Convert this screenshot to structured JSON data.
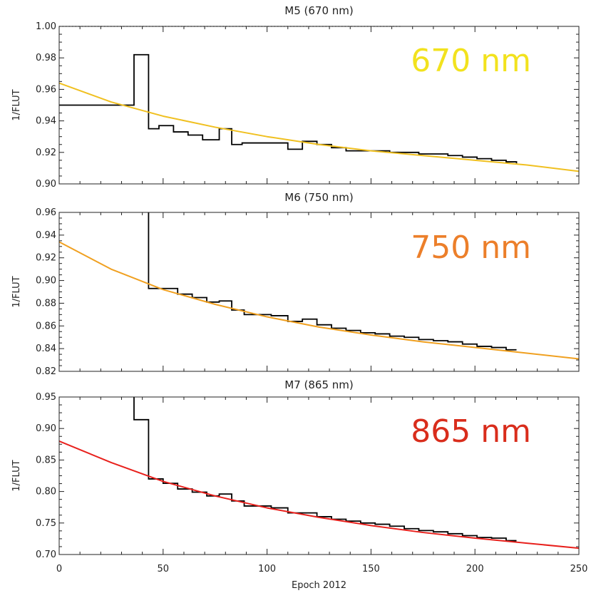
{
  "figure": {
    "x_axis_label": "Epoch 2012",
    "x_tick_labels": [
      "0",
      "50",
      "100",
      "150",
      "200",
      "250"
    ]
  },
  "chart_data": [
    {
      "type": "line",
      "title": "M5 (670 nm)",
      "ylabel": "1/FLUT",
      "xlabel": "",
      "xlim": [
        0,
        250
      ],
      "ylim": [
        0.9,
        1.0
      ],
      "y_ticks": [
        "0.90",
        "0.92",
        "0.94",
        "0.96",
        "0.98",
        "1.00"
      ],
      "annotation": "670 nm",
      "annotation_color": "#f2e21e",
      "fit_color": "#f0c020",
      "reference_line": {
        "y": 1.0,
        "x_range": [
          0,
          165
        ],
        "style": "dotted"
      },
      "series": [
        {
          "style": "step",
          "color": "#000000",
          "x": [
            0,
            36,
            43,
            48,
            55,
            62,
            69,
            77,
            83,
            88,
            95,
            102,
            110,
            117,
            124,
            131,
            138,
            145,
            152,
            159,
            166,
            173,
            180,
            187,
            194,
            201,
            208,
            215,
            220
          ],
          "y": [
            0.95,
            0.982,
            0.935,
            0.937,
            0.933,
            0.931,
            0.928,
            0.935,
            0.925,
            0.926,
            0.926,
            0.926,
            0.922,
            0.927,
            0.925,
            0.923,
            0.921,
            0.921,
            0.921,
            0.92,
            0.92,
            0.919,
            0.919,
            0.918,
            0.917,
            0.916,
            0.915,
            0.914,
            0.913
          ]
        },
        {
          "style": "line",
          "color": "#f0c020",
          "x": [
            0,
            25,
            50,
            75,
            100,
            125,
            150,
            175,
            200,
            225,
            250
          ],
          "y": [
            0.964,
            0.952,
            0.943,
            0.936,
            0.93,
            0.925,
            0.921,
            0.918,
            0.915,
            0.912,
            0.908
          ]
        }
      ]
    },
    {
      "type": "line",
      "title": "M6 (750 nm)",
      "ylabel": "1/FLUT",
      "xlabel": "",
      "xlim": [
        0,
        250
      ],
      "ylim": [
        0.82,
        0.96
      ],
      "y_ticks": [
        "0.82",
        "0.84",
        "0.86",
        "0.88",
        "0.90",
        "0.92",
        "0.94",
        "0.96"
      ],
      "annotation": "750 nm",
      "annotation_color": "#ec7f2a",
      "fit_color": "#f0a020",
      "series": [
        {
          "style": "step",
          "color": "#000000",
          "x": [
            36,
            43,
            50,
            57,
            64,
            71,
            77,
            83,
            89,
            95,
            102,
            110,
            117,
            124,
            131,
            138,
            145,
            152,
            159,
            166,
            173,
            180,
            187,
            194,
            201,
            208,
            215,
            220
          ],
          "y": [
            0.962,
            0.893,
            0.893,
            0.888,
            0.885,
            0.881,
            0.882,
            0.874,
            0.87,
            0.87,
            0.869,
            0.864,
            0.866,
            0.861,
            0.858,
            0.856,
            0.854,
            0.853,
            0.851,
            0.85,
            0.848,
            0.847,
            0.846,
            0.844,
            0.842,
            0.841,
            0.839,
            0.839
          ]
        },
        {
          "style": "line",
          "color": "#f0a020",
          "x": [
            0,
            25,
            50,
            75,
            100,
            125,
            150,
            175,
            200,
            225,
            250
          ],
          "y": [
            0.934,
            0.91,
            0.892,
            0.879,
            0.868,
            0.859,
            0.852,
            0.846,
            0.841,
            0.836,
            0.831
          ]
        }
      ]
    },
    {
      "type": "line",
      "title": "M7 (865 nm)",
      "ylabel": "1/FLUT",
      "xlabel": "Epoch 2012",
      "xlim": [
        0,
        250
      ],
      "ylim": [
        0.7,
        0.95
      ],
      "y_ticks": [
        "0.70",
        "0.75",
        "0.80",
        "0.85",
        "0.90",
        "0.95"
      ],
      "annotation": "865 nm",
      "annotation_color": "#d92d1c",
      "fit_color": "#e8201c",
      "series": [
        {
          "style": "step",
          "color": "#000000",
          "x": [
            36,
            43,
            50,
            57,
            64,
            71,
            77,
            83,
            89,
            95,
            102,
            110,
            117,
            124,
            131,
            138,
            145,
            152,
            159,
            166,
            173,
            180,
            187,
            194,
            201,
            208,
            215,
            220
          ],
          "y": [
            0.914,
            0.82,
            0.813,
            0.804,
            0.799,
            0.793,
            0.796,
            0.785,
            0.777,
            0.777,
            0.774,
            0.766,
            0.766,
            0.76,
            0.756,
            0.753,
            0.75,
            0.748,
            0.745,
            0.741,
            0.738,
            0.736,
            0.733,
            0.73,
            0.727,
            0.726,
            0.722,
            0.722
          ]
        },
        {
          "style": "line",
          "color": "#e8201c",
          "x": [
            0,
            25,
            50,
            75,
            100,
            125,
            150,
            175,
            200,
            225,
            250
          ],
          "y": [
            0.88,
            0.846,
            0.816,
            0.793,
            0.774,
            0.759,
            0.746,
            0.735,
            0.726,
            0.718,
            0.71
          ]
        }
      ]
    }
  ]
}
